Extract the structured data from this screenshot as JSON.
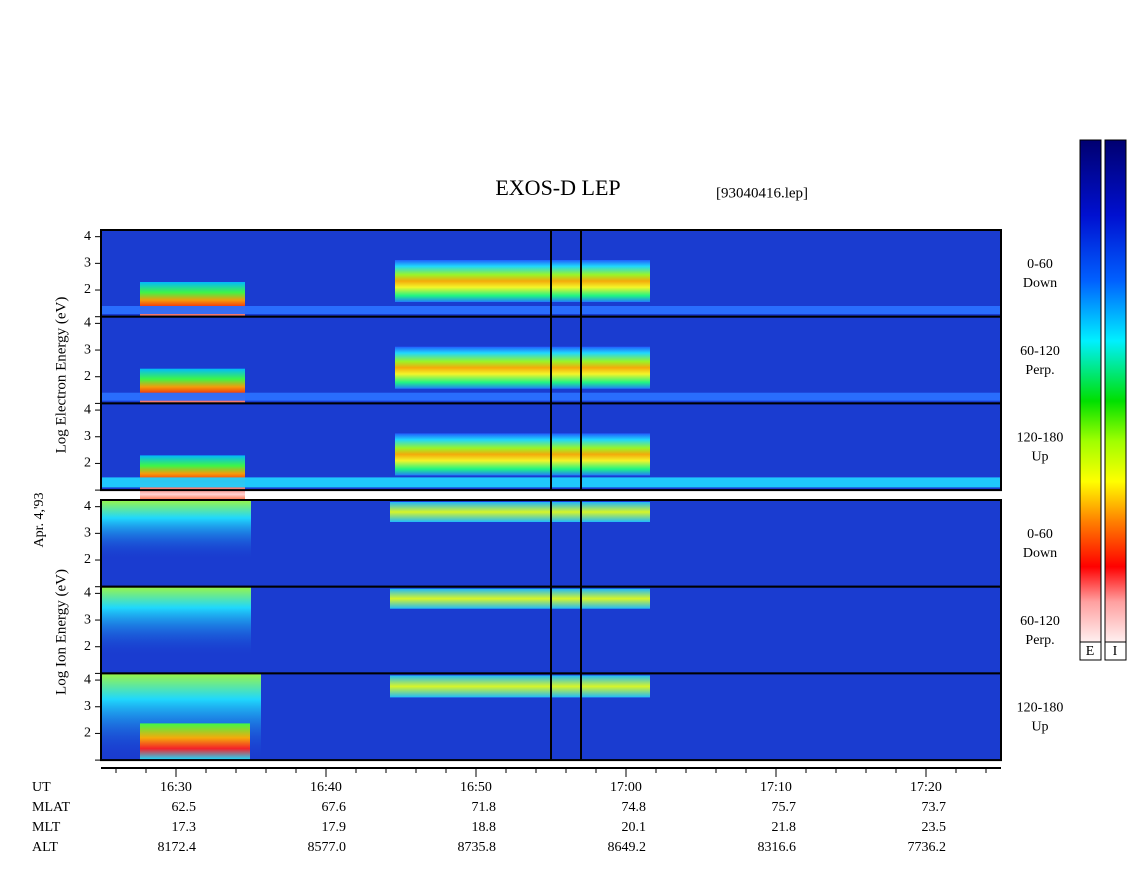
{
  "title": "EXOS-D LEP",
  "file": "[93040416.lep]",
  "date_label": "Apr. 4,'93",
  "electron_panel": {
    "y_label": "Log Electron Energy (eV)",
    "channels": [
      {
        "angle": "0-60",
        "direction": "Down"
      },
      {
        "angle": "60-120",
        "direction": "Perp."
      },
      {
        "angle": "120-180",
        "direction": "Up"
      }
    ]
  },
  "ion_panel": {
    "y_label": "Log Ion Energy (eV)",
    "channels": [
      {
        "angle": "0-60",
        "direction": "Down"
      },
      {
        "angle": "60-120",
        "direction": "Perp."
      },
      {
        "angle": "120-180",
        "direction": "Up"
      }
    ]
  },
  "ylim": [
    1,
    4.25
  ],
  "yticks": [
    2,
    3,
    4
  ],
  "unlabeled_yticks": [
    1
  ],
  "xlim": [
    985,
    1045
  ],
  "xticks": [
    {
      "value": 990,
      "label": "16:30"
    },
    {
      "value": 1000,
      "label": "16:40"
    },
    {
      "value": 1010,
      "label": "16:50"
    },
    {
      "value": 1020,
      "label": "17:00"
    },
    {
      "value": 1030,
      "label": "17:10"
    },
    {
      "value": 1040,
      "label": "17:20"
    }
  ],
  "xminor": [
    986,
    988,
    990,
    992,
    994,
    996,
    998,
    1000,
    1002,
    1004,
    1006,
    1008,
    1010,
    1012,
    1014,
    1016,
    1018,
    1020,
    1022,
    1024,
    1026,
    1028,
    1030,
    1032,
    1034,
    1036,
    1038,
    1040,
    1042,
    1044
  ],
  "marker_lines": [
    1015,
    1017
  ],
  "orbit_table": {
    "time_label": "UT",
    "rows": [
      {
        "label": "MLAT",
        "values": [
          "62.5",
          "67.6",
          "71.8",
          "74.8",
          "75.7",
          "73.7"
        ]
      },
      {
        "label": "MLT",
        "values": [
          "17.3",
          "17.9",
          "18.8",
          "20.1",
          "21.8",
          "23.5"
        ]
      },
      {
        "label": "ALT",
        "values": [
          "8172.4",
          "8577.0",
          "8735.8",
          "8649.2",
          "8316.6",
          "7736.2"
        ]
      }
    ]
  },
  "colorbar_labels": [
    "E",
    "I"
  ]
}
